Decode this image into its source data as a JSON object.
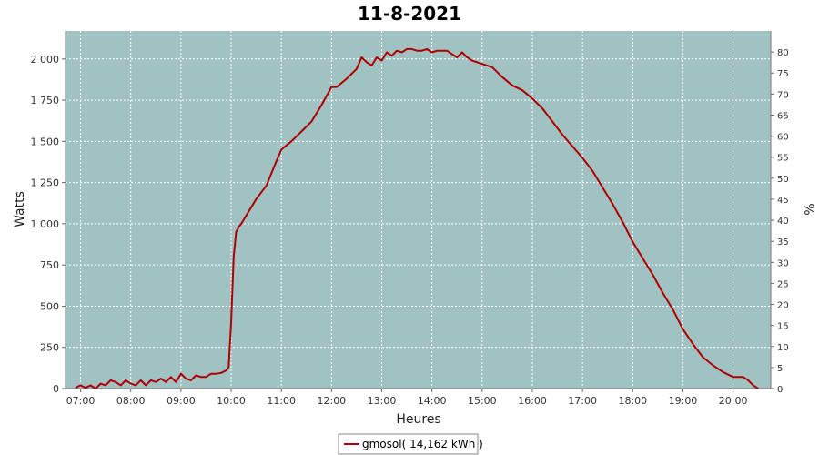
{
  "chart_data": {
    "type": "line",
    "title": "11-8-2021",
    "xlabel": "Heures",
    "ylabel": "Watts",
    "y2label": "%",
    "legend": {
      "placement": "bottom-center",
      "label": "gmosol( 14,162 kWh )"
    },
    "grid": true,
    "xlim": [
      6.7,
      20.75
    ],
    "ylim": [
      0,
      2170
    ],
    "y2lim": [
      0,
      85
    ],
    "x_ticks": [
      "07:00",
      "08:00",
      "09:00",
      "10:00",
      "11:00",
      "12:00",
      "13:00",
      "14:00",
      "15:00",
      "16:00",
      "17:00",
      "18:00",
      "19:00",
      "20:00"
    ],
    "y_ticks": [
      "0",
      "250",
      "500",
      "750",
      "1 000",
      "1 250",
      "1 500",
      "1 750",
      "2 000"
    ],
    "y2_ticks": [
      "0",
      "5",
      "10",
      "15",
      "20",
      "25",
      "30",
      "35",
      "40",
      "45",
      "50",
      "55",
      "60",
      "65",
      "70",
      "75",
      "80"
    ],
    "colors": {
      "plot_bg": "#a0c2c2",
      "line": "#b00000",
      "grid": "#ffffff"
    },
    "series": [
      {
        "name": "gmosol( 14,162 kWh )",
        "x": [
          6.9,
          7.0,
          7.1,
          7.2,
          7.3,
          7.4,
          7.5,
          7.6,
          7.7,
          7.8,
          7.9,
          8.0,
          8.1,
          8.2,
          8.3,
          8.4,
          8.5,
          8.6,
          8.7,
          8.8,
          8.9,
          9.0,
          9.1,
          9.2,
          9.3,
          9.4,
          9.5,
          9.6,
          9.7,
          9.8,
          9.9,
          9.95,
          10.0,
          10.05,
          10.1,
          10.15,
          10.2,
          10.3,
          10.5,
          10.7,
          10.9,
          11.0,
          11.2,
          11.4,
          11.6,
          11.8,
          12.0,
          12.1,
          12.3,
          12.5,
          12.6,
          12.7,
          12.8,
          12.9,
          13.0,
          13.1,
          13.2,
          13.3,
          13.4,
          13.5,
          13.6,
          13.7,
          13.8,
          13.9,
          14.0,
          14.1,
          14.2,
          14.3,
          14.4,
          14.5,
          14.6,
          14.7,
          14.8,
          15.0,
          15.2,
          15.4,
          15.6,
          15.8,
          16.0,
          16.2,
          16.4,
          16.6,
          16.8,
          17.0,
          17.2,
          17.4,
          17.6,
          17.8,
          18.0,
          18.2,
          18.4,
          18.6,
          18.8,
          19.0,
          19.2,
          19.4,
          19.6,
          19.8,
          20.0,
          20.2,
          20.3,
          20.4,
          20.5
        ],
        "values": [
          5,
          20,
          5,
          20,
          0,
          30,
          20,
          50,
          40,
          20,
          50,
          30,
          20,
          50,
          20,
          50,
          40,
          60,
          40,
          70,
          40,
          90,
          60,
          50,
          80,
          70,
          70,
          90,
          90,
          95,
          110,
          130,
          400,
          800,
          950,
          980,
          1000,
          1050,
          1150,
          1230,
          1380,
          1450,
          1500,
          1560,
          1620,
          1720,
          1830,
          1830,
          1880,
          1940,
          2010,
          1980,
          1960,
          2010,
          1990,
          2040,
          2020,
          2050,
          2040,
          2060,
          2060,
          2050,
          2050,
          2060,
          2040,
          2050,
          2050,
          2050,
          2030,
          2010,
          2040,
          2010,
          1990,
          1970,
          1950,
          1890,
          1840,
          1810,
          1760,
          1700,
          1620,
          1540,
          1470,
          1400,
          1320,
          1220,
          1120,
          1010,
          890,
          790,
          690,
          580,
          480,
          360,
          270,
          190,
          140,
          100,
          70,
          70,
          50,
          20,
          0
        ]
      }
    ]
  }
}
